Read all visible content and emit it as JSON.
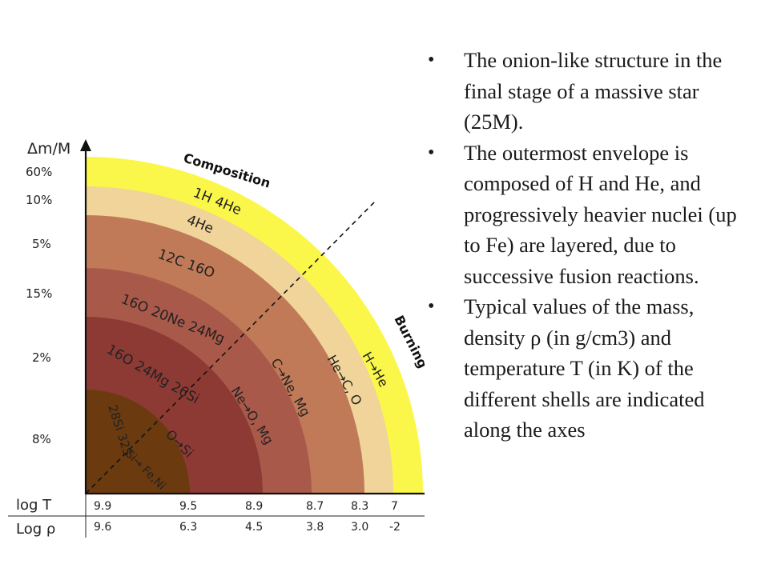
{
  "bullets": [
    "The onion-like structure in the final stage of a massive star (25M).",
    "The outermost envelope is composed of H and He, and progressively heavier nuclei (up to Fe) are layered, due to successive fusion reactions.",
    "Typical values of the mass, density ρ (in g/cm3) and temperature T (in K) of the different shells are indicated along the axes"
  ],
  "diagram": {
    "y_axis_label": "Δm/M",
    "composition_title": "Composition",
    "burning_title": "Burning",
    "mass_fractions": [
      "60%",
      "10%",
      "5%",
      "15%",
      "2%",
      "8%"
    ],
    "composition_labels": [
      "1H 4He",
      "4He",
      "12C 16O",
      "16O 20Ne 24Mg",
      "16O 24Mg 26Si",
      "28Si 32S"
    ],
    "burning_labels": [
      "H→He",
      "He→C, O",
      "C→Ne, Mg",
      "Ne→O, Mg",
      "O→Si",
      "Si→ Fe,Ni"
    ],
    "logT_label": "log T",
    "logT_values": [
      "9.9",
      "9.5",
      "8.9",
      "8.7",
      "8.3",
      "7"
    ],
    "logrho_label": "Log ρ",
    "logrho_values": [
      "9.6",
      "6.3",
      "4.5",
      "3.8",
      "3.0",
      "-2"
    ],
    "shell_colors": [
      "#faf74a",
      "#f0d49a",
      "#c07a58",
      "#a9594a",
      "#8e3a34",
      "#6b3a0f"
    ]
  }
}
